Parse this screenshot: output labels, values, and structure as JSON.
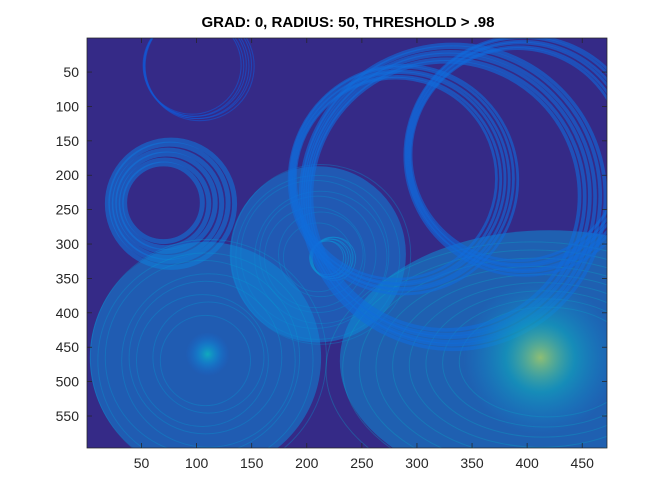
{
  "chart_data": {
    "type": "heatmap",
    "title": "GRAD: 0, RADIUS: 50, THRESHOLD > .98",
    "xlabel": "",
    "ylabel": "",
    "x_ticks": [
      50,
      100,
      150,
      200,
      250,
      300,
      350,
      400,
      450
    ],
    "y_ticks": [
      50,
      100,
      150,
      200,
      250,
      300,
      350,
      400,
      450,
      500,
      550
    ],
    "xlim": [
      0.5,
      472.5
    ],
    "ylim": [
      0.5,
      596.5
    ],
    "y_direction": "reverse",
    "colormap": "parula",
    "background_color": "#352a87",
    "grid": false,
    "legend": "none",
    "regions": [
      {
        "shape": "ring",
        "cx": 74,
        "cy": 240,
        "r_outer": 60,
        "r_inner": 33,
        "level": 0.35
      },
      {
        "shape": "disk",
        "cx": 210,
        "cy": 315,
        "r": 80,
        "level": 0.42
      },
      {
        "shape": "ring",
        "cx": 222,
        "cy": 320,
        "r_outer": 20,
        "r_inner": 15,
        "level": 0.5
      },
      {
        "shape": "disk",
        "cx": 108,
        "cy": 465,
        "r": 105,
        "level": 0.45
      },
      {
        "shape": "ellipse",
        "cx": 420,
        "cy": 470,
        "rx": 190,
        "ry": 190,
        "level": 0.5
      },
      {
        "shape": "ring",
        "cx": 100,
        "cy": 40,
        "r_outer": 50,
        "r_inner": 44,
        "level": 0.18
      },
      {
        "shape": "ring",
        "cx": 330,
        "cy": 230,
        "r_outer": 140,
        "r_inner": 120,
        "level": 0.3
      },
      {
        "shape": "ring",
        "cx": 395,
        "cy": 170,
        "r_outer": 110,
        "r_inner": 95,
        "level": 0.28
      },
      {
        "shape": "ring",
        "cx": 285,
        "cy": 205,
        "r_outer": 105,
        "r_inner": 90,
        "level": 0.3
      }
    ],
    "peaks": [
      {
        "x": 412,
        "y": 465,
        "level": 0.9
      },
      {
        "x": 110,
        "y": 460,
        "level": 0.7
      }
    ]
  }
}
